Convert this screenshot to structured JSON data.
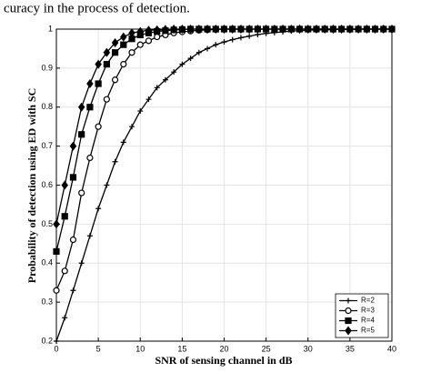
{
  "context_text": "curacy in the process of detection.",
  "chart_data": {
    "type": "line",
    "x_label": "SNR of sensing channel in dB",
    "y_label": "Probability of detection using ED with SC",
    "x": [
      0,
      1,
      2,
      3,
      4,
      5,
      6,
      7,
      8,
      9,
      10,
      11,
      12,
      13,
      14,
      15,
      16,
      17,
      18,
      19,
      20,
      21,
      22,
      23,
      24,
      25,
      26,
      27,
      28,
      29,
      30,
      31,
      32,
      33,
      34,
      35,
      36,
      37,
      38,
      39,
      40
    ],
    "series": [
      {
        "name": "R=2",
        "color": "#000000",
        "marker": "plus",
        "values": [
          0.2,
          0.26,
          0.33,
          0.4,
          0.47,
          0.54,
          0.6,
          0.66,
          0.71,
          0.75,
          0.79,
          0.82,
          0.85,
          0.87,
          0.89,
          0.91,
          0.925,
          0.94,
          0.95,
          0.96,
          0.967,
          0.973,
          0.978,
          0.982,
          0.986,
          0.989,
          0.991,
          0.993,
          0.995,
          0.996,
          0.997,
          0.998,
          0.998,
          0.999,
          0.999,
          0.999,
          1,
          1,
          1,
          1,
          1
        ]
      },
      {
        "name": "R=3",
        "color": "#000000",
        "marker": "circle",
        "values": [
          0.33,
          0.38,
          0.46,
          0.58,
          0.67,
          0.75,
          0.82,
          0.87,
          0.91,
          0.94,
          0.96,
          0.97,
          0.98,
          0.985,
          0.99,
          0.993,
          0.995,
          0.997,
          0.998,
          0.999,
          1,
          1,
          1,
          1,
          1,
          1,
          1,
          1,
          1,
          1,
          1,
          1,
          1,
          1,
          1,
          1,
          1,
          1,
          1,
          1,
          1
        ]
      },
      {
        "name": "R=4",
        "color": "#000000",
        "marker": "square",
        "values": [
          0.43,
          0.52,
          0.62,
          0.73,
          0.8,
          0.86,
          0.91,
          0.94,
          0.96,
          0.975,
          0.985,
          0.99,
          0.994,
          0.996,
          0.998,
          0.999,
          1,
          1,
          1,
          1,
          1,
          1,
          1,
          1,
          1,
          1,
          1,
          1,
          1,
          1,
          1,
          1,
          1,
          1,
          1,
          1,
          1,
          1,
          1,
          1,
          1
        ]
      },
      {
        "name": "R=5",
        "color": "#000000",
        "marker": "diamond",
        "values": [
          0.5,
          0.6,
          0.7,
          0.8,
          0.86,
          0.91,
          0.94,
          0.965,
          0.98,
          0.99,
          0.994,
          0.997,
          0.998,
          0.999,
          1,
          1,
          1,
          1,
          1,
          1,
          1,
          1,
          1,
          1,
          1,
          1,
          1,
          1,
          1,
          1,
          1,
          1,
          1,
          1,
          1,
          1,
          1,
          1,
          1,
          1,
          1
        ]
      }
    ],
    "xlim": [
      0,
      40
    ],
    "xticks": [
      0,
      5,
      10,
      15,
      20,
      25,
      30,
      35,
      40
    ],
    "ylim": [
      0.2,
      1
    ],
    "yticks": [
      0.2,
      0.3,
      0.4,
      0.5,
      0.6,
      0.7,
      0.8,
      0.9,
      1
    ],
    "grid": true,
    "legend": "lower right"
  }
}
